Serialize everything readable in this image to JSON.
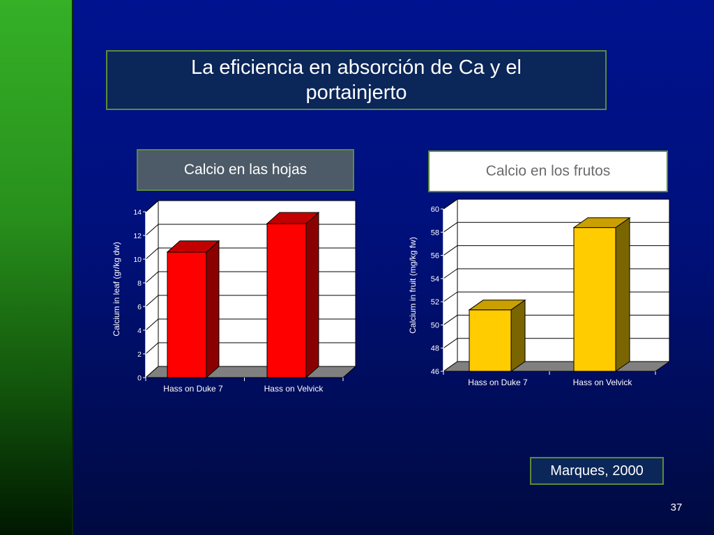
{
  "slide": {
    "title": "La eficiencia en absorción de Ca y el portainjerto",
    "leaf_label": "Calcio en las hojas",
    "fruit_label": "Calcio en los frutos",
    "citation": "Marques, 2000",
    "page_number": "37"
  },
  "colors": {
    "background": "#00107a",
    "sidebar": "#2a9a1e",
    "leaf_bar": "#ff0000",
    "fruit_bar": "#ffcc00"
  },
  "chart_data": [
    {
      "type": "bar",
      "title": "",
      "categories": [
        "Hass on Duke 7",
        "Hass on Velvick"
      ],
      "values": [
        10.6,
        13.0
      ],
      "xlabel": "",
      "ylabel": "Calcium in leaf (gr/kg dw)",
      "ylim": [
        0,
        14
      ],
      "yticks": [
        0,
        2,
        4,
        6,
        8,
        10,
        12,
        14
      ],
      "grid": true,
      "color": "#ff0000",
      "side_color": "#8a0000",
      "top_color": "#c20000"
    },
    {
      "type": "bar",
      "title": "",
      "categories": [
        "Hass on Duke 7",
        "Hass on Velvick"
      ],
      "values": [
        51.3,
        58.4
      ],
      "xlabel": "",
      "ylabel": "Calcium in fruit (mg/kg fw)",
      "ylim": [
        46,
        60
      ],
      "yticks": [
        46,
        48,
        50,
        52,
        54,
        56,
        58,
        60
      ],
      "grid": true,
      "color": "#ffcc00",
      "side_color": "#7a6500",
      "top_color": "#c9a000"
    }
  ]
}
